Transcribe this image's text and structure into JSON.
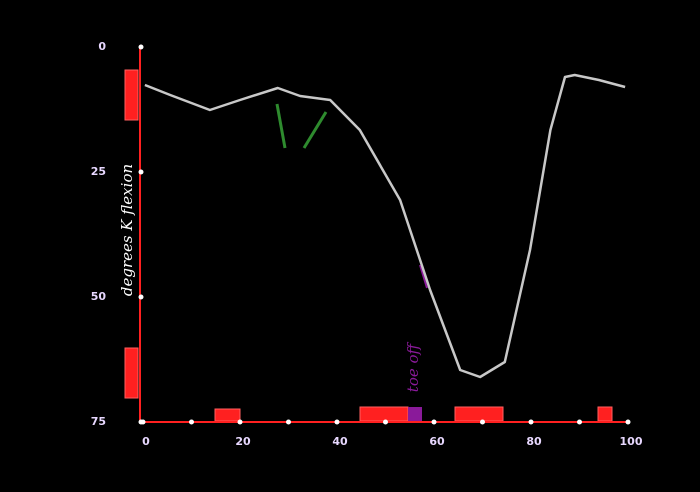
{
  "chart_data": {
    "type": "line",
    "y_label": "degrees K flexion",
    "annotation": "toe off",
    "x": [
      0.4,
      5.6,
      13.8,
      20,
      27.8,
      32.4,
      38.6,
      44.7,
      53,
      59.2,
      65.4,
      69.5,
      74.6,
      79.8,
      84,
      87,
      89,
      94,
      99.4
    ],
    "values": [
      7.6,
      9.6,
      12.6,
      10.6,
      8.2,
      9.8,
      10.6,
      16.6,
      30.6,
      48.6,
      64.6,
      66,
      63,
      40.6,
      16.6,
      6,
      5.6,
      6.6,
      8
    ],
    "color": "#c8c8c8",
    "xlim": [
      0,
      100
    ],
    "xticks": [
      0,
      20,
      40,
      60,
      80,
      100
    ],
    "ylim": [
      75,
      0
    ],
    "yticks": [
      0,
      25,
      50,
      75
    ]
  }
}
